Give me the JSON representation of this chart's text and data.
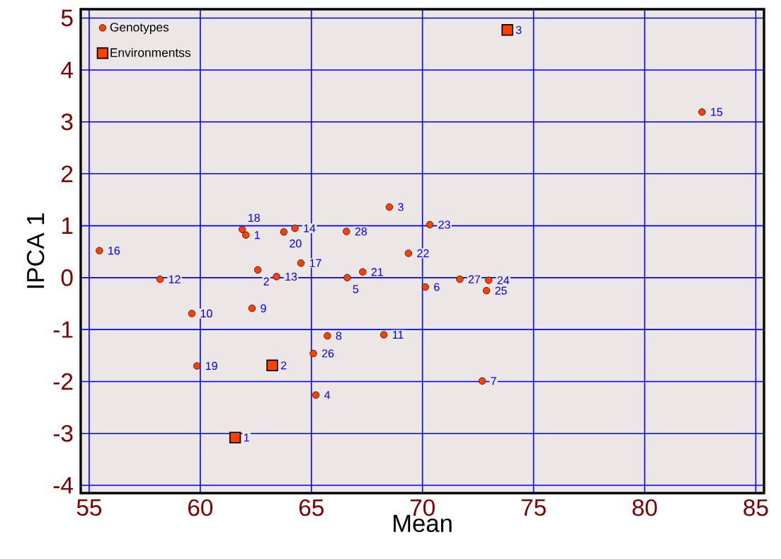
{
  "chart_data": {
    "type": "scatter",
    "xlabel": "Mean",
    "ylabel": "IPCA 1",
    "xlim": [
      54.62,
      85.37
    ],
    "ylim": [
      -4.15,
      5.17
    ],
    "xticks": [
      55,
      60,
      65,
      70,
      75,
      80,
      85
    ],
    "yticks": [
      -4,
      -3,
      -2,
      -1,
      0,
      1,
      2,
      3,
      4,
      5
    ],
    "grid": true,
    "legend": "top left",
    "series": [
      {
        "name": "Genotypes",
        "color": "#ff4000",
        "marker": "circle",
        "x": [
          62.05,
          62.59,
          68.51,
          65.2,
          66.61,
          70.13,
          72.69,
          65.72,
          62.33,
          59.62,
          68.26,
          58.19,
          63.43,
          64.26,
          82.58,
          55.46,
          64.53,
          61.89,
          59.85,
          63.76,
          67.31,
          69.37,
          70.33,
          72.98,
          72.88,
          65.09,
          71.68,
          66.58
        ],
        "values": [
          0.82,
          0.15,
          1.36,
          -2.26,
          0.0,
          -0.18,
          -1.99,
          -1.12,
          -0.59,
          -0.69,
          -1.1,
          -0.03,
          0.02,
          0.95,
          3.19,
          0.52,
          0.28,
          0.93,
          -1.7,
          0.88,
          0.11,
          0.47,
          1.02,
          -0.05,
          -0.25,
          -1.46,
          -0.03,
          0.89
        ]
      },
      {
        "name": "Environmentss",
        "color": "#ff4000",
        "marker": "square",
        "x": [
          61.57,
          63.24,
          73.82
        ],
        "values": [
          -3.08,
          -1.69,
          4.77
        ]
      }
    ],
    "annotations": [
      {
        "text": "1",
        "x": 62.05,
        "y": 0.82
      },
      {
        "text": "2",
        "x": 62.59,
        "y": 0.15
      },
      {
        "text": "3",
        "x": 68.51,
        "y": 1.36
      },
      {
        "text": "4",
        "x": 65.2,
        "y": -2.26
      },
      {
        "text": "5",
        "x": 66.61,
        "y": 0.0
      },
      {
        "text": "6",
        "x": 70.13,
        "y": -0.18
      },
      {
        "text": "7",
        "x": 72.69,
        "y": -1.99
      },
      {
        "text": "8",
        "x": 65.72,
        "y": -1.12
      },
      {
        "text": "9",
        "x": 62.33,
        "y": -0.59
      },
      {
        "text": "10",
        "x": 59.62,
        "y": -0.69
      },
      {
        "text": "11",
        "x": 68.26,
        "y": -1.1
      },
      {
        "text": "12",
        "x": 58.19,
        "y": -0.03
      },
      {
        "text": "13",
        "x": 63.43,
        "y": 0.02
      },
      {
        "text": "14",
        "x": 64.26,
        "y": 0.95
      },
      {
        "text": "15",
        "x": 82.58,
        "y": 3.19
      },
      {
        "text": "16",
        "x": 55.46,
        "y": 0.52
      },
      {
        "text": "17",
        "x": 64.53,
        "y": 0.28
      },
      {
        "text": "18",
        "x": 61.89,
        "y": 0.93
      },
      {
        "text": "19",
        "x": 59.85,
        "y": -1.7
      },
      {
        "text": "20",
        "x": 63.76,
        "y": 0.88
      },
      {
        "text": "21",
        "x": 67.31,
        "y": 0.11
      },
      {
        "text": "22",
        "x": 69.37,
        "y": 0.47
      },
      {
        "text": "23",
        "x": 70.33,
        "y": 1.02
      },
      {
        "text": "24",
        "x": 72.98,
        "y": -0.05
      },
      {
        "text": "25",
        "x": 72.88,
        "y": -0.25
      },
      {
        "text": "26",
        "x": 65.09,
        "y": -1.46
      },
      {
        "text": "27",
        "x": 71.68,
        "y": -0.03
      },
      {
        "text": "28",
        "x": 66.58,
        "y": 0.89
      },
      {
        "text": "1",
        "x": 61.57,
        "y": -3.08
      },
      {
        "text": "2",
        "x": 63.24,
        "y": -1.69
      },
      {
        "text": "3",
        "x": 73.82,
        "y": 4.77
      }
    ]
  }
}
